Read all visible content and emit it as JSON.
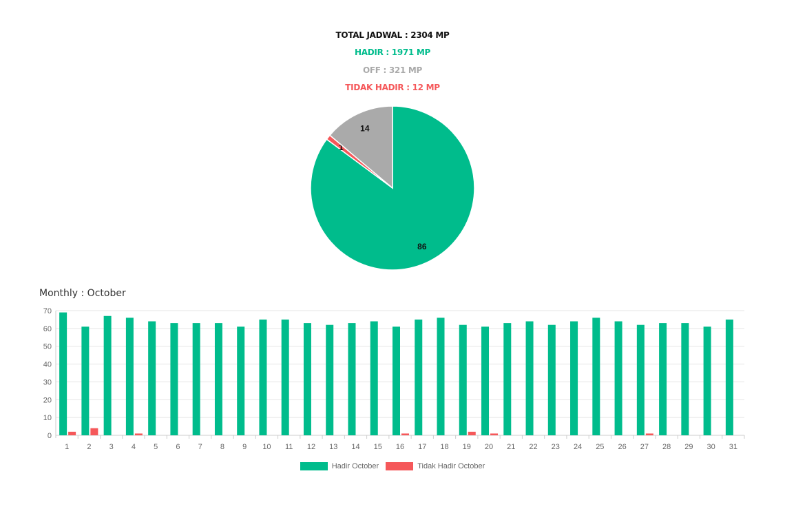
{
  "summary": {
    "total": "TOTAL JADWAL : 2304 MP",
    "hadir": "HADIR : 1971 MP",
    "off": "OFF : 321 MP",
    "tidak_hadir": "TIDAK HADIR : 12 MP"
  },
  "colors": {
    "hadir": "#00bc8c",
    "off": "#aaaaaa",
    "tidak_hadir": "#f5585a",
    "total": "#111111",
    "grid": "#e5e5e5",
    "tick": "#666666"
  },
  "monthly_title": "Monthly : October",
  "chart_data": [
    {
      "type": "pie",
      "slices": [
        {
          "label": "Hadir",
          "value": 86,
          "color": "#00bc8c"
        },
        {
          "label": "Tidak Hadir",
          "value": 1,
          "color": "#f5585a"
        },
        {
          "label": "Off",
          "value": 14,
          "color": "#aaaaaa"
        }
      ],
      "data_labels": [
        "86",
        "1",
        "14"
      ]
    },
    {
      "type": "bar",
      "title": "Monthly : October",
      "categories": [
        "1",
        "2",
        "3",
        "4",
        "5",
        "6",
        "7",
        "8",
        "9",
        "10",
        "11",
        "12",
        "13",
        "14",
        "15",
        "16",
        "17",
        "18",
        "19",
        "20",
        "21",
        "22",
        "23",
        "24",
        "25",
        "26",
        "27",
        "28",
        "29",
        "30",
        "31"
      ],
      "series": [
        {
          "name": "Hadir October",
          "color": "#00bc8c",
          "values": [
            69,
            61,
            67,
            66,
            64,
            63,
            63,
            63,
            61,
            65,
            65,
            63,
            62,
            63,
            64,
            61,
            65,
            66,
            62,
            61,
            63,
            64,
            62,
            64,
            66,
            64,
            62,
            63,
            63,
            61,
            65
          ]
        },
        {
          "name": "Tidak Hadir October",
          "color": "#f5585a",
          "values": [
            2,
            4,
            0,
            1,
            0,
            0,
            0,
            0,
            0,
            0,
            0,
            0,
            0,
            0,
            0,
            1,
            0,
            0,
            2,
            1,
            0,
            0,
            0,
            0,
            0,
            0,
            1,
            0,
            0,
            0,
            0
          ]
        }
      ],
      "ylim": [
        0,
        70
      ],
      "yticks": [
        0,
        10,
        20,
        30,
        40,
        50,
        60,
        70
      ],
      "grid": true,
      "legend": "bottom"
    }
  ]
}
